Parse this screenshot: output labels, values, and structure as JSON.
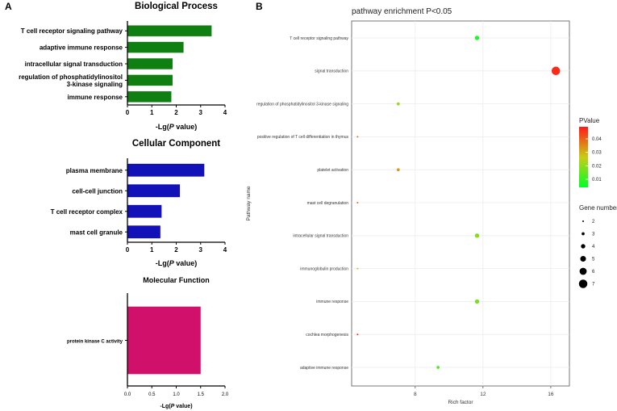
{
  "panel_a_label": "A",
  "panel_b_label": "B",
  "chart_data": [
    {
      "type": "bar",
      "orientation": "horizontal",
      "title": "Biological Process",
      "categories": [
        "T cell receptor signaling pathway",
        "adaptive immune response",
        "intracellular signal transduction",
        "regulation of phosphatidylinositol 3-kinase signaling",
        "immune response"
      ],
      "category_lines": [
        [
          "T cell receptor signaling pathway"
        ],
        [
          "adaptive immune response"
        ],
        [
          "intracellular signal transduction"
        ],
        [
          "regulation of phosphatidylinositol",
          "3-kinase signaling"
        ],
        [
          "immune response"
        ]
      ],
      "values": [
        3.45,
        2.3,
        1.85,
        1.85,
        1.8
      ],
      "xlim": [
        0,
        4
      ],
      "xticks": [
        "0",
        "1",
        "2",
        "3",
        "4"
      ],
      "xlabel_prefix": "-Lg(",
      "xlabel_italic": "P",
      "xlabel_suffix": " value)",
      "color": "#0f7f12"
    },
    {
      "type": "bar",
      "orientation": "horizontal",
      "title": "Cellular Component",
      "categories": [
        "plasma membrane",
        "cell-cell junction",
        "T cell receptor complex",
        "mast cell granule"
      ],
      "category_lines": [
        [
          "plasma membrane"
        ],
        [
          "cell-cell junction"
        ],
        [
          "T cell receptor complex"
        ],
        [
          "mast cell granule"
        ]
      ],
      "values": [
        3.15,
        2.15,
        1.4,
        1.35
      ],
      "xlim": [
        0,
        4
      ],
      "xticks": [
        "0",
        "1",
        "2",
        "3",
        "4"
      ],
      "xlabel_prefix": "-Lg(",
      "xlabel_italic": "P",
      "xlabel_suffix": " value)",
      "color": "#1212b8"
    },
    {
      "type": "bar",
      "orientation": "horizontal",
      "title": "Molecular Function",
      "categories": [
        "protein kinase C activity"
      ],
      "category_lines": [
        [
          "protein kinase C activity"
        ]
      ],
      "values": [
        1.5
      ],
      "xlim": [
        0,
        2
      ],
      "xticks": [
        "0.0",
        "0.5",
        "1.0",
        "1.5",
        "2.0"
      ],
      "xlabel_prefix": "-Lg(",
      "xlabel_italic": "P",
      "xlabel_suffix": " value)",
      "color": "#d0106a"
    },
    {
      "type": "scatter",
      "title": "pathway enrichment P<0.05",
      "xlabel": "Rich factor",
      "ylabel": "Pathway name",
      "xlim": [
        4.25,
        17.1
      ],
      "xticks": [
        8,
        12,
        16
      ],
      "xtick_labels": [
        "8",
        "12",
        "16"
      ],
      "pathways": [
        "T cell receptor signaling pathway",
        "signal transduction",
        "regulation of phosphatidylinositol 3-kinase signaling",
        "positive regulation of T cell differentiation in thymus",
        "platelet activation",
        "mast cell degranulation",
        "intracellular signal transduction",
        "immunoglobulin production",
        "immune response",
        "cochlea morphogenesis",
        "adaptive immune response"
      ],
      "rich_factor": [
        11.65,
        16.3,
        7.0,
        4.6,
        7.0,
        4.6,
        11.65,
        4.6,
        11.65,
        4.6,
        9.35
      ],
      "pvalue": [
        0.007,
        0.047,
        0.021,
        0.039,
        0.033,
        0.039,
        0.019,
        0.025,
        0.017,
        0.047,
        0.012
      ],
      "gene_number": [
        4,
        7,
        3,
        2,
        3,
        2,
        4,
        2,
        4,
        2,
        3
      ],
      "color_legend": {
        "title": "PValue",
        "ticks": [
          "0.04",
          "0.03",
          "0.02",
          "0.01"
        ],
        "tick_values": [
          0.04,
          0.03,
          0.02,
          0.01
        ],
        "range": [
          0.004,
          0.049
        ],
        "low_color": "#00ff26",
        "high_color": "#ff1a1a"
      },
      "size_legend": {
        "title": "Gene number",
        "values": [
          2,
          3,
          4,
          5,
          6,
          7
        ],
        "labels": [
          "2",
          "3",
          "4",
          "5",
          "6",
          "7"
        ]
      }
    }
  ]
}
